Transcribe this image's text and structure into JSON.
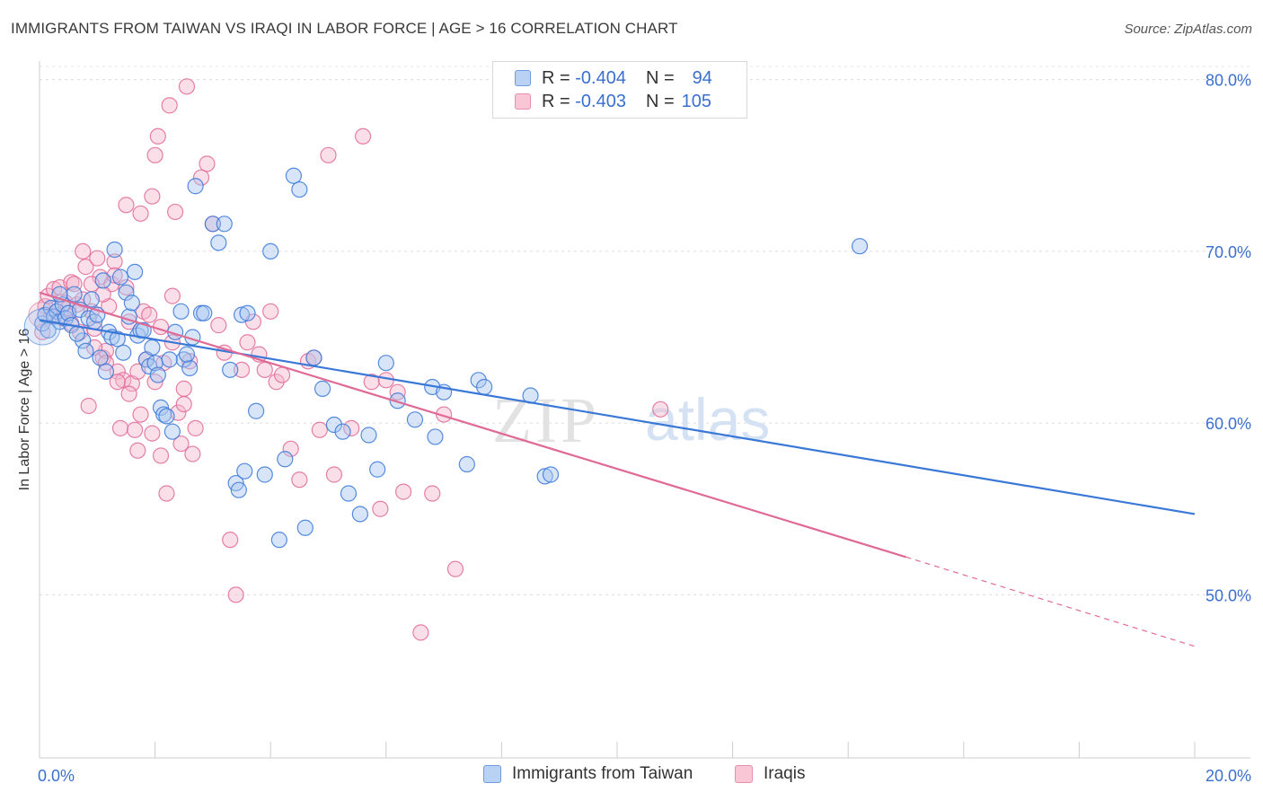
{
  "title": "IMMIGRANTS FROM TAIWAN VS IRAQI IN LABOR FORCE | AGE > 16 CORRELATION CHART",
  "source": "Source: ZipAtlas.com",
  "watermark": {
    "zip": "ZIP",
    "atlas": "atlas"
  },
  "colors": {
    "blue": "#3a78d8",
    "blue_fill": "#a9c6f0",
    "pink": "#e06a96",
    "pink_fill": "#f5b8cc",
    "tick_text": "#3b6fcf"
  },
  "legend": {
    "rows": [
      {
        "r_label": "R =",
        "r_value": "-0.404",
        "n_label": "N =",
        "n_value": "94"
      },
      {
        "r_label": "R =",
        "r_value": "-0.403",
        "n_label": "N =",
        "n_value": "105"
      }
    ]
  },
  "bottom_legend": [
    "Immigrants from Taiwan",
    "Iraqis"
  ],
  "chart_data": {
    "type": "scatter",
    "title": "IMMIGRANTS FROM TAIWAN VS IRAQI IN LABOR FORCE | AGE > 16 CORRELATION CHART",
    "ylabel": "In Labor Force | Age > 16",
    "xlabel": "",
    "xlim": [
      0,
      20
    ],
    "ylim": [
      40.5,
      81.5
    ],
    "x_tick_labels": [
      "0.0%",
      "20.0%"
    ],
    "y_ticks": [
      50,
      60,
      70,
      80
    ],
    "y_tick_labels": [
      "50.0%",
      "60.0%",
      "70.0%",
      "80.0%"
    ],
    "grid": true,
    "legend_position": "top-center",
    "series": [
      {
        "name": "Immigrants from Taiwan",
        "R": -0.404,
        "N": 94,
        "trend": {
          "x": [
            0,
            20
          ],
          "y": [
            66.0,
            54.7
          ]
        },
        "points": [
          [
            0.05,
            65.8
          ],
          [
            0.1,
            66.3
          ],
          [
            0.15,
            65.4
          ],
          [
            0.2,
            66.7
          ],
          [
            0.25,
            66.2
          ],
          [
            0.3,
            66.5
          ],
          [
            0.35,
            65.9
          ],
          [
            0.4,
            66.9
          ],
          [
            0.45,
            66.1
          ],
          [
            0.5,
            66.4
          ],
          [
            0.55,
            65.7
          ],
          [
            0.6,
            67.5
          ],
          [
            0.7,
            66.6
          ],
          [
            0.75,
            64.8
          ],
          [
            0.8,
            64.2
          ],
          [
            0.85,
            66.1
          ],
          [
            0.9,
            67.2
          ],
          [
            0.95,
            65.9
          ],
          [
            1.0,
            66.3
          ],
          [
            1.05,
            63.8
          ],
          [
            1.1,
            68.3
          ],
          [
            1.15,
            63.0
          ],
          [
            1.2,
            65.3
          ],
          [
            1.25,
            65.0
          ],
          [
            1.3,
            70.1
          ],
          [
            1.4,
            68.5
          ],
          [
            1.45,
            64.1
          ],
          [
            1.5,
            67.6
          ],
          [
            1.55,
            66.2
          ],
          [
            1.6,
            67.0
          ],
          [
            1.65,
            68.8
          ],
          [
            1.7,
            65.1
          ],
          [
            1.75,
            65.4
          ],
          [
            1.8,
            65.4
          ],
          [
            1.85,
            63.7
          ],
          [
            1.9,
            63.3
          ],
          [
            2.0,
            63.5
          ],
          [
            2.05,
            62.8
          ],
          [
            2.1,
            60.9
          ],
          [
            2.15,
            60.5
          ],
          [
            2.2,
            60.4
          ],
          [
            2.3,
            59.5
          ],
          [
            2.35,
            65.3
          ],
          [
            2.45,
            66.5
          ],
          [
            2.5,
            63.7
          ],
          [
            2.6,
            63.2
          ],
          [
            2.7,
            73.8
          ],
          [
            2.8,
            66.4
          ],
          [
            2.85,
            66.4
          ],
          [
            3.0,
            71.6
          ],
          [
            3.1,
            70.5
          ],
          [
            3.2,
            71.6
          ],
          [
            3.4,
            56.5
          ],
          [
            3.45,
            56.1
          ],
          [
            3.5,
            66.3
          ],
          [
            3.55,
            57.2
          ],
          [
            3.6,
            66.4
          ],
          [
            3.75,
            60.7
          ],
          [
            3.9,
            57.0
          ],
          [
            4.0,
            70.0
          ],
          [
            4.15,
            53.2
          ],
          [
            4.25,
            57.9
          ],
          [
            4.4,
            74.4
          ],
          [
            4.5,
            73.6
          ],
          [
            4.6,
            53.9
          ],
          [
            4.75,
            63.8
          ],
          [
            4.9,
            62.0
          ],
          [
            5.1,
            59.9
          ],
          [
            5.25,
            59.5
          ],
          [
            5.35,
            55.9
          ],
          [
            5.55,
            54.7
          ],
          [
            5.7,
            59.3
          ],
          [
            5.85,
            57.3
          ],
          [
            6.0,
            63.5
          ],
          [
            6.2,
            61.3
          ],
          [
            6.5,
            60.2
          ],
          [
            6.8,
            62.1
          ],
          [
            6.85,
            59.2
          ],
          [
            7.0,
            61.8
          ],
          [
            7.4,
            57.6
          ],
          [
            7.6,
            62.5
          ],
          [
            7.7,
            62.1
          ],
          [
            8.5,
            61.6
          ],
          [
            8.75,
            56.9
          ],
          [
            8.85,
            57.0
          ],
          [
            14.2,
            70.3
          ],
          [
            2.55,
            64.0
          ],
          [
            2.25,
            63.7
          ],
          [
            1.95,
            64.4
          ],
          [
            0.65,
            65.2
          ],
          [
            1.35,
            64.9
          ],
          [
            0.35,
            67.5
          ],
          [
            2.65,
            65.0
          ],
          [
            3.3,
            63.1
          ]
        ]
      },
      {
        "name": "Iraqis",
        "R": -0.403,
        "N": 105,
        "trend": {
          "x": [
            0,
            15
          ],
          "y": [
            67.6,
            52.2
          ]
        },
        "trend_dashed": {
          "x": [
            15,
            20
          ],
          "y": [
            52.2,
            47.0
          ]
        },
        "points": [
          [
            0.05,
            65.3
          ],
          [
            0.1,
            66.8
          ],
          [
            0.15,
            67.4
          ],
          [
            0.2,
            66.2
          ],
          [
            0.25,
            67.8
          ],
          [
            0.3,
            66.5
          ],
          [
            0.35,
            67.9
          ],
          [
            0.4,
            66.1
          ],
          [
            0.45,
            67.0
          ],
          [
            0.5,
            66.7
          ],
          [
            0.55,
            68.2
          ],
          [
            0.6,
            68.1
          ],
          [
            0.65,
            66.9
          ],
          [
            0.7,
            65.3
          ],
          [
            0.75,
            70.0
          ],
          [
            0.8,
            69.1
          ],
          [
            0.85,
            61.0
          ],
          [
            0.9,
            66.5
          ],
          [
            0.95,
            65.5
          ],
          [
            1.0,
            69.6
          ],
          [
            1.05,
            68.5
          ],
          [
            1.1,
            63.8
          ],
          [
            1.15,
            64.2
          ],
          [
            1.2,
            66.8
          ],
          [
            1.25,
            68.1
          ],
          [
            1.3,
            69.4
          ],
          [
            1.35,
            63.0
          ],
          [
            1.4,
            59.7
          ],
          [
            1.45,
            62.5
          ],
          [
            1.5,
            72.7
          ],
          [
            1.55,
            65.9
          ],
          [
            1.6,
            62.3
          ],
          [
            1.65,
            59.6
          ],
          [
            1.7,
            58.4
          ],
          [
            1.75,
            72.2
          ],
          [
            1.8,
            66.5
          ],
          [
            1.85,
            63.7
          ],
          [
            1.9,
            66.3
          ],
          [
            1.95,
            73.2
          ],
          [
            2.0,
            75.6
          ],
          [
            2.05,
            76.7
          ],
          [
            2.1,
            65.6
          ],
          [
            2.15,
            63.5
          ],
          [
            2.2,
            55.9
          ],
          [
            2.25,
            78.5
          ],
          [
            2.3,
            67.4
          ],
          [
            2.35,
            72.3
          ],
          [
            2.4,
            60.6
          ],
          [
            2.45,
            58.8
          ],
          [
            2.5,
            61.1
          ],
          [
            2.55,
            79.6
          ],
          [
            2.6,
            63.6
          ],
          [
            2.65,
            58.2
          ],
          [
            2.7,
            59.7
          ],
          [
            2.8,
            74.3
          ],
          [
            2.9,
            75.1
          ],
          [
            3.0,
            71.6
          ],
          [
            3.1,
            65.7
          ],
          [
            3.2,
            64.1
          ],
          [
            3.3,
            53.2
          ],
          [
            3.4,
            50.0
          ],
          [
            3.5,
            63.1
          ],
          [
            3.6,
            64.7
          ],
          [
            3.7,
            65.9
          ],
          [
            3.8,
            64.0
          ],
          [
            3.9,
            63.1
          ],
          [
            4.0,
            66.5
          ],
          [
            4.1,
            62.4
          ],
          [
            4.2,
            62.8
          ],
          [
            4.35,
            58.5
          ],
          [
            4.5,
            56.7
          ],
          [
            4.65,
            63.6
          ],
          [
            4.75,
            63.8
          ],
          [
            4.85,
            59.6
          ],
          [
            5.0,
            75.6
          ],
          [
            5.1,
            57.0
          ],
          [
            5.4,
            59.7
          ],
          [
            5.6,
            76.7
          ],
          [
            5.75,
            62.4
          ],
          [
            5.9,
            55.0
          ],
          [
            6.0,
            62.5
          ],
          [
            6.2,
            61.8
          ],
          [
            6.3,
            56.0
          ],
          [
            6.6,
            47.8
          ],
          [
            6.8,
            55.9
          ],
          [
            7.0,
            60.5
          ],
          [
            7.2,
            51.5
          ],
          [
            10.75,
            60.8
          ],
          [
            0.9,
            68.1
          ],
          [
            1.1,
            67.5
          ],
          [
            1.3,
            68.6
          ],
          [
            1.5,
            67.9
          ],
          [
            1.7,
            63.0
          ],
          [
            2.0,
            62.4
          ],
          [
            2.3,
            64.7
          ],
          [
            2.5,
            62.0
          ],
          [
            0.55,
            65.8
          ],
          [
            0.75,
            67.2
          ],
          [
            0.95,
            64.4
          ],
          [
            1.15,
            63.5
          ],
          [
            1.35,
            62.4
          ],
          [
            1.55,
            61.7
          ],
          [
            1.75,
            60.5
          ],
          [
            1.95,
            59.4
          ],
          [
            2.1,
            58.1
          ]
        ]
      }
    ]
  }
}
